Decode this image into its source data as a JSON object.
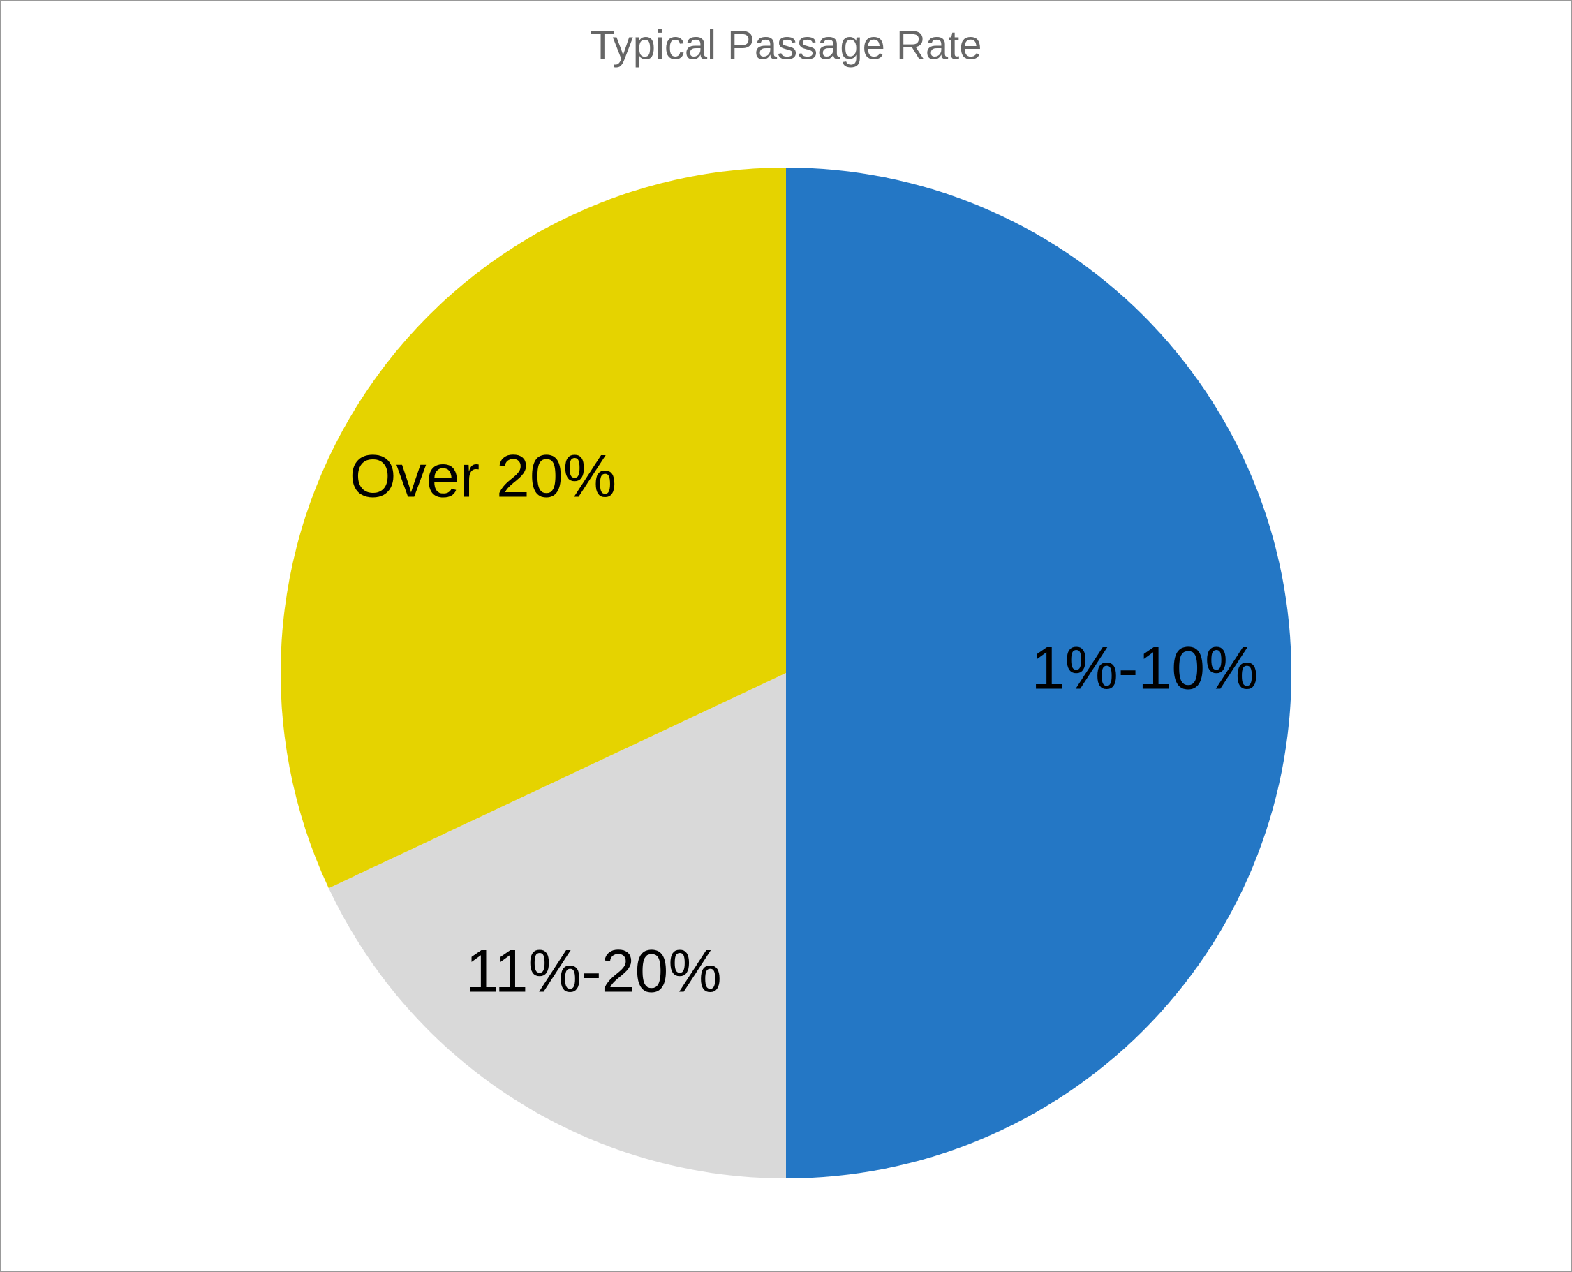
{
  "chart_data": {
    "type": "pie",
    "title": "Typical Passage Rate",
    "categories": [
      "1%-10%",
      "11%-20%",
      "Over 20%"
    ],
    "values": [
      50,
      18,
      32
    ],
    "colors": [
      "#2477c5",
      "#d9d9d9",
      "#e5d300"
    ]
  }
}
